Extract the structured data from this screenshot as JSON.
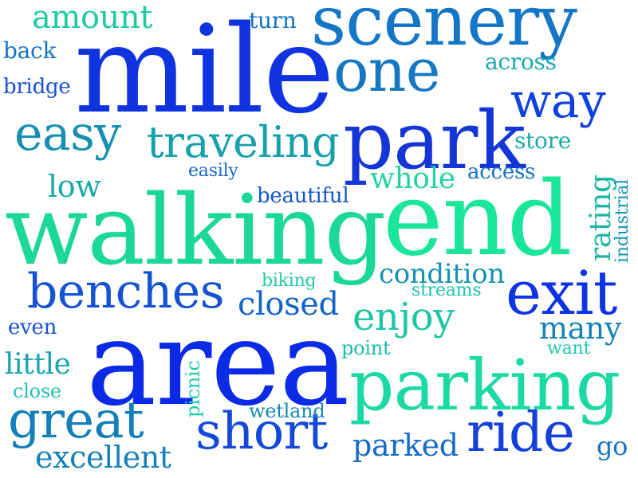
{
  "words": [
    {
      "text": "mile",
      "color": "#1033e0"
    },
    {
      "text": "walking",
      "color": "#1bd79a"
    },
    {
      "text": "area",
      "color": "#0a2ae6"
    },
    {
      "text": "end",
      "color": "#19e59b"
    },
    {
      "text": "scenery",
      "color": "#1476c6"
    },
    {
      "text": "park",
      "color": "#1536d6"
    },
    {
      "text": "parking",
      "color": "#1bd9a3"
    },
    {
      "text": "exit",
      "color": "#0d33e4"
    },
    {
      "text": "one",
      "color": "#1577c1"
    },
    {
      "text": "ride",
      "color": "#1440d9"
    },
    {
      "text": "great",
      "color": "#137fb9"
    },
    {
      "text": "short",
      "color": "#1448d9"
    },
    {
      "text": "benches",
      "color": "#1553d2"
    },
    {
      "text": "easy",
      "color": "#168fb1"
    },
    {
      "text": "way",
      "color": "#1040df"
    },
    {
      "text": "traveling",
      "color": "#16a0ab"
    },
    {
      "text": "enjoy",
      "color": "#1ec7a4"
    },
    {
      "text": "amount",
      "color": "#1ecaa0"
    },
    {
      "text": "closed",
      "color": "#1463c9"
    },
    {
      "text": "excellent",
      "color": "#1480b8"
    },
    {
      "text": "parked",
      "color": "#156bc6"
    },
    {
      "text": "low",
      "color": "#19a9a8"
    },
    {
      "text": "condition",
      "color": "#1592b2"
    },
    {
      "text": "many",
      "color": "#1683b6"
    },
    {
      "text": "whole",
      "color": "#24d2a2"
    },
    {
      "text": "rating",
      "color": "#1ab6a4"
    },
    {
      "text": "little",
      "color": "#17a3b0"
    },
    {
      "text": "across",
      "color": "#19aaa9"
    },
    {
      "text": "beautiful",
      "color": "#1557cd"
    },
    {
      "text": "store",
      "color": "#1ba9a8"
    },
    {
      "text": "access",
      "color": "#1572c4"
    },
    {
      "text": "turn",
      "color": "#1572c4"
    },
    {
      "text": "back",
      "color": "#1572c4"
    },
    {
      "text": "bridge",
      "color": "#1550d3"
    },
    {
      "text": "even",
      "color": "#1550d3"
    },
    {
      "text": "close",
      "color": "#25c1b0"
    },
    {
      "text": "wetland",
      "color": "#168bb5"
    },
    {
      "text": "go",
      "color": "#1672c4"
    },
    {
      "text": "picnic",
      "color": "#1fcfa8"
    },
    {
      "text": "point",
      "color": "#1bbcaa"
    },
    {
      "text": "biking",
      "color": "#22c9a6"
    },
    {
      "text": "streams",
      "color": "#1ec2ab"
    },
    {
      "text": "easily",
      "color": "#1569c7"
    },
    {
      "text": "industrial",
      "color": "#1593b4"
    },
    {
      "text": "want",
      "color": "#1fc6a9"
    }
  ]
}
